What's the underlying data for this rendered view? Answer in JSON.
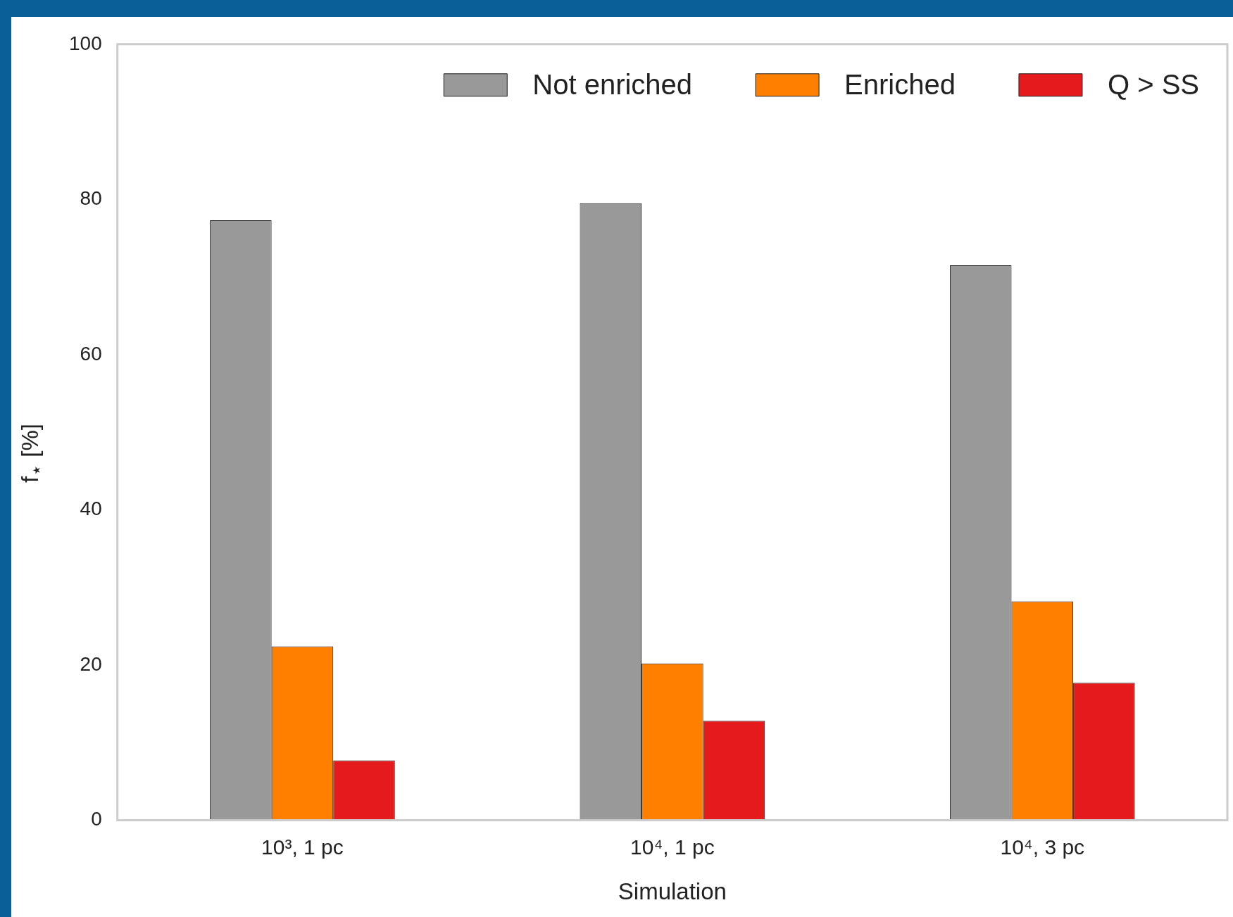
{
  "chart_data": {
    "type": "bar",
    "xlabel": "Simulation",
    "ylabel": "f$_{⋆}$ [%]",
    "categories": [
      "10³, 1 pc",
      "10⁴, 1 pc",
      "10⁴, 3 pc"
    ],
    "series": [
      {
        "name": "Not enriched",
        "color": "#999999",
        "values": [
          77.3,
          79.5,
          71.5
        ]
      },
      {
        "name": "Enriched",
        "color": "#ff7f00",
        "values": [
          22.4,
          20.2,
          28.2
        ]
      },
      {
        "name": "Q > SS",
        "color": "#e41a1c",
        "values": [
          7.7,
          12.8,
          17.7
        ]
      }
    ],
    "ylim": [
      0,
      100
    ],
    "yticks": [
      0,
      20,
      40,
      60,
      80,
      100
    ],
    "grid": false,
    "legend": "top right"
  }
}
